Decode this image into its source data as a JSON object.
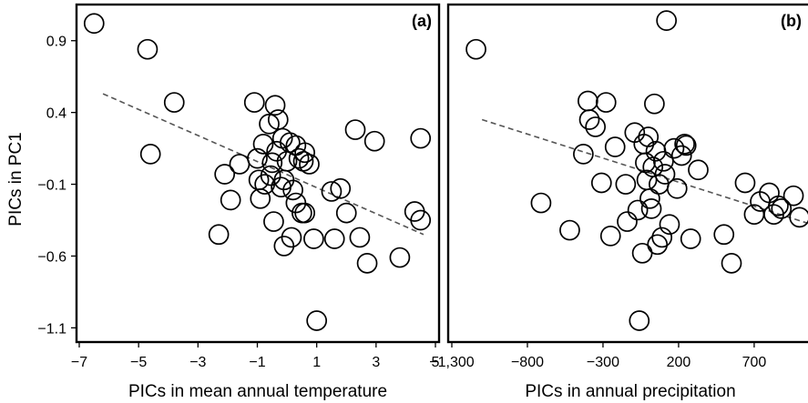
{
  "figure": {
    "ylabel": "PICs in PC1"
  },
  "chart_data": [
    {
      "type": "scatter",
      "panel_label": "(a)",
      "xlabel": "PICs in mean annual temperature",
      "ylabel": "PICs in PC1",
      "xlim": [
        -7,
        5
      ],
      "ylim": [
        -1.18,
        1.12
      ],
      "xticks": [
        -7,
        -5,
        -3,
        -1,
        1,
        3,
        5
      ],
      "xtick_labels": [
        "−7",
        "−5",
        "−3",
        "−1",
        "1",
        "3",
        "5"
      ],
      "yticks": [
        0.9,
        0.4,
        -0.1,
        -0.6,
        -1.1
      ],
      "ytick_labels": [
        "0.9",
        "0.4",
        "−0.1",
        "−0.6",
        "−1.1"
      ],
      "grid": false,
      "trendline": {
        "style": "dashed",
        "x": [
          -6.2,
          4.6
        ],
        "y": [
          0.53,
          -0.45
        ]
      },
      "points": [
        {
          "x": -6.5,
          "y": 1.02
        },
        {
          "x": -4.7,
          "y": 0.84
        },
        {
          "x": -3.8,
          "y": 0.47
        },
        {
          "x": -4.6,
          "y": 0.11
        },
        {
          "x": -2.3,
          "y": -0.45
        },
        {
          "x": -2.1,
          "y": -0.03
        },
        {
          "x": -1.9,
          "y": -0.21
        },
        {
          "x": -1.6,
          "y": 0.04
        },
        {
          "x": -1.1,
          "y": 0.47
        },
        {
          "x": -1.0,
          "y": 0.08
        },
        {
          "x": -0.95,
          "y": -0.07
        },
        {
          "x": -0.9,
          "y": -0.2
        },
        {
          "x": -0.8,
          "y": 0.18
        },
        {
          "x": -0.75,
          "y": -0.1
        },
        {
          "x": -0.6,
          "y": 0.32
        },
        {
          "x": -0.55,
          "y": -0.04
        },
        {
          "x": -0.5,
          "y": 0.05
        },
        {
          "x": -0.45,
          "y": -0.36
        },
        {
          "x": -0.4,
          "y": 0.45
        },
        {
          "x": -0.35,
          "y": 0.13
        },
        {
          "x": -0.3,
          "y": 0.35
        },
        {
          "x": -0.2,
          "y": -0.12
        },
        {
          "x": -0.15,
          "y": 0.22
        },
        {
          "x": -0.1,
          "y": -0.07
        },
        {
          "x": -0.1,
          "y": -0.53
        },
        {
          "x": 0.0,
          "y": 0.06
        },
        {
          "x": 0.1,
          "y": 0.19
        },
        {
          "x": 0.15,
          "y": -0.47
        },
        {
          "x": 0.2,
          "y": -0.14
        },
        {
          "x": 0.3,
          "y": 0.17
        },
        {
          "x": 0.3,
          "y": -0.23
        },
        {
          "x": 0.4,
          "y": 0.08
        },
        {
          "x": 0.5,
          "y": -0.3
        },
        {
          "x": 0.55,
          "y": 0.06
        },
        {
          "x": 0.6,
          "y": 0.12
        },
        {
          "x": 0.6,
          "y": -0.3
        },
        {
          "x": 0.75,
          "y": 0.04
        },
        {
          "x": 0.9,
          "y": -0.48
        },
        {
          "x": 1.0,
          "y": -1.05
        },
        {
          "x": 1.5,
          "y": -0.15
        },
        {
          "x": 1.6,
          "y": -0.48
        },
        {
          "x": 1.8,
          "y": -0.13
        },
        {
          "x": 2.0,
          "y": -0.3
        },
        {
          "x": 2.3,
          "y": 0.28
        },
        {
          "x": 2.45,
          "y": -0.47
        },
        {
          "x": 2.7,
          "y": -0.65
        },
        {
          "x": 2.95,
          "y": 0.2
        },
        {
          "x": 3.8,
          "y": -0.61
        },
        {
          "x": 4.3,
          "y": -0.29
        },
        {
          "x": 4.5,
          "y": -0.35
        },
        {
          "x": 4.5,
          "y": 0.22
        }
      ]
    },
    {
      "type": "scatter",
      "panel_label": "(b)",
      "xlabel": "PICs in annual precipitation",
      "xlim": [
        -1300,
        1050
      ],
      "ylim": [
        -1.18,
        1.12
      ],
      "xticks": [
        -1300,
        -800,
        -300,
        200,
        700
      ],
      "xtick_labels": [
        "−1,300",
        "−800",
        "−300",
        "200",
        "700"
      ],
      "grid": false,
      "trendline": {
        "style": "dashed",
        "x": [
          -1100,
          1050
        ],
        "y": [
          0.35,
          -0.37
        ]
      },
      "points": [
        {
          "x": -1140,
          "y": 0.84
        },
        {
          "x": -710,
          "y": -0.23
        },
        {
          "x": -520,
          "y": -0.42
        },
        {
          "x": -430,
          "y": 0.11
        },
        {
          "x": -400,
          "y": 0.48
        },
        {
          "x": -390,
          "y": 0.35
        },
        {
          "x": -350,
          "y": 0.3
        },
        {
          "x": -310,
          "y": -0.09
        },
        {
          "x": -280,
          "y": 0.47
        },
        {
          "x": -250,
          "y": -0.46
        },
        {
          "x": -220,
          "y": 0.16
        },
        {
          "x": -150,
          "y": -0.1
        },
        {
          "x": -140,
          "y": -0.36
        },
        {
          "x": -90,
          "y": 0.26
        },
        {
          "x": -70,
          "y": -0.28
        },
        {
          "x": -60,
          "y": -1.05
        },
        {
          "x": -40,
          "y": -0.58
        },
        {
          "x": -30,
          "y": 0.18
        },
        {
          "x": -20,
          "y": 0.05
        },
        {
          "x": -10,
          "y": -0.07
        },
        {
          "x": 0,
          "y": 0.23
        },
        {
          "x": 10,
          "y": -0.2
        },
        {
          "x": 20,
          "y": -0.27
        },
        {
          "x": 30,
          "y": 0.02
        },
        {
          "x": 40,
          "y": 0.46
        },
        {
          "x": 50,
          "y": 0.13
        },
        {
          "x": 60,
          "y": -0.52
        },
        {
          "x": 70,
          "y": -0.1
        },
        {
          "x": 90,
          "y": -0.47
        },
        {
          "x": 100,
          "y": 0.06
        },
        {
          "x": 110,
          "y": -0.03
        },
        {
          "x": 120,
          "y": 1.04
        },
        {
          "x": 140,
          "y": -0.38
        },
        {
          "x": 170,
          "y": 0.15
        },
        {
          "x": 190,
          "y": -0.13
        },
        {
          "x": 220,
          "y": 0.1
        },
        {
          "x": 240,
          "y": 0.18
        },
        {
          "x": 250,
          "y": 0.17
        },
        {
          "x": 280,
          "y": -0.48
        },
        {
          "x": 330,
          "y": 0.0
        },
        {
          "x": 500,
          "y": -0.45
        },
        {
          "x": 550,
          "y": -0.65
        },
        {
          "x": 640,
          "y": -0.09
        },
        {
          "x": 700,
          "y": -0.31
        },
        {
          "x": 740,
          "y": -0.22
        },
        {
          "x": 800,
          "y": -0.16
        },
        {
          "x": 830,
          "y": -0.31
        },
        {
          "x": 860,
          "y": -0.25
        },
        {
          "x": 880,
          "y": -0.27
        },
        {
          "x": 960,
          "y": -0.18
        },
        {
          "x": 1000,
          "y": -0.33
        }
      ]
    }
  ]
}
